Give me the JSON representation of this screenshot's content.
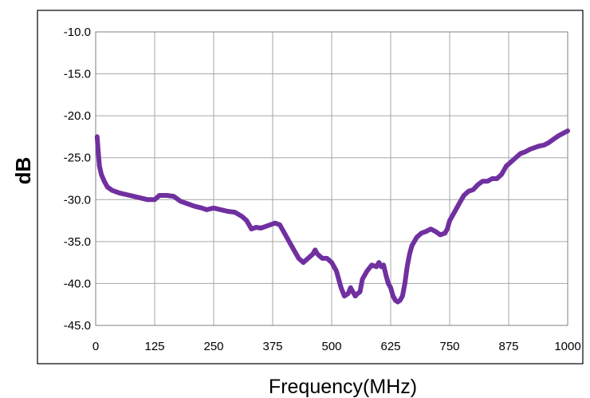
{
  "chart_data": {
    "type": "line",
    "title": "",
    "xlabel": "Frequency(MHz)",
    "ylabel": "dB",
    "xlim": [
      0,
      1000
    ],
    "ylim": [
      -45,
      -10
    ],
    "grid": true,
    "x_ticks": [
      0,
      125,
      250,
      375,
      500,
      625,
      750,
      875,
      1000
    ],
    "x_tick_labels": [
      "0",
      "125",
      "250",
      "375",
      "500",
      "625",
      "750",
      "875",
      "1000"
    ],
    "y_ticks": [
      -10,
      -15,
      -20,
      -25,
      -30,
      -35,
      -40,
      -45
    ],
    "y_tick_labels": [
      "-10.0",
      "-15.0",
      "-20.0",
      "-25.0",
      "-30.0",
      "-35.0",
      "-40.0",
      "-45.0"
    ],
    "series": [
      {
        "color": "#7030a0",
        "x": [
          3,
          5,
          8,
          12,
          18,
          25,
          35,
          50,
          65,
          80,
          95,
          110,
          125,
          135,
          150,
          165,
          180,
          195,
          210,
          225,
          235,
          250,
          265,
          280,
          295,
          310,
          320,
          330,
          340,
          350,
          360,
          370,
          380,
          390,
          400,
          410,
          420,
          430,
          440,
          450,
          460,
          465,
          470,
          480,
          490,
          500,
          510,
          520,
          527,
          535,
          540,
          545,
          550,
          555,
          560,
          565,
          575,
          585,
          595,
          600,
          605,
          610,
          615,
          620,
          625,
          630,
          635,
          640,
          645,
          650,
          655,
          660,
          665,
          670,
          675,
          680,
          690,
          700,
          710,
          720,
          730,
          740,
          745,
          750,
          760,
          770,
          780,
          790,
          800,
          810,
          820,
          830,
          840,
          850,
          860,
          870,
          880,
          890,
          900,
          910,
          920,
          930,
          940,
          950,
          960,
          970,
          980,
          990,
          1000
        ],
        "y": [
          -22.5,
          -24.0,
          -26.0,
          -27.0,
          -27.8,
          -28.5,
          -28.9,
          -29.2,
          -29.4,
          -29.6,
          -29.8,
          -30.0,
          -30.0,
          -29.5,
          -29.5,
          -29.6,
          -30.2,
          -30.5,
          -30.8,
          -31.0,
          -31.2,
          -31.0,
          -31.2,
          -31.4,
          -31.5,
          -32.0,
          -32.5,
          -33.5,
          -33.3,
          -33.4,
          -33.2,
          -33.0,
          -32.8,
          -33.0,
          -34.0,
          -35.0,
          -36.0,
          -37.0,
          -37.5,
          -37.0,
          -36.5,
          -36.0,
          -36.5,
          -37.0,
          -37.0,
          -37.5,
          -38.5,
          -40.5,
          -41.5,
          -41.2,
          -40.5,
          -41.0,
          -41.5,
          -41.2,
          -41.0,
          -39.5,
          -38.5,
          -37.8,
          -38.0,
          -37.5,
          -38.0,
          -37.8,
          -39.0,
          -40.0,
          -40.5,
          -41.5,
          -42.0,
          -42.2,
          -42.0,
          -41.5,
          -40.0,
          -38.0,
          -36.5,
          -35.5,
          -35.0,
          -34.5,
          -34.0,
          -33.8,
          -33.5,
          -33.8,
          -34.2,
          -34.0,
          -33.5,
          -32.5,
          -31.5,
          -30.5,
          -29.5,
          -29.0,
          -28.8,
          -28.2,
          -27.8,
          -27.8,
          -27.5,
          -27.5,
          -27.0,
          -26.0,
          -25.5,
          -25.0,
          -24.5,
          -24.3,
          -24.0,
          -23.8,
          -23.6,
          -23.5,
          -23.2,
          -22.8,
          -22.4,
          -22.1,
          -21.8
        ]
      }
    ]
  }
}
